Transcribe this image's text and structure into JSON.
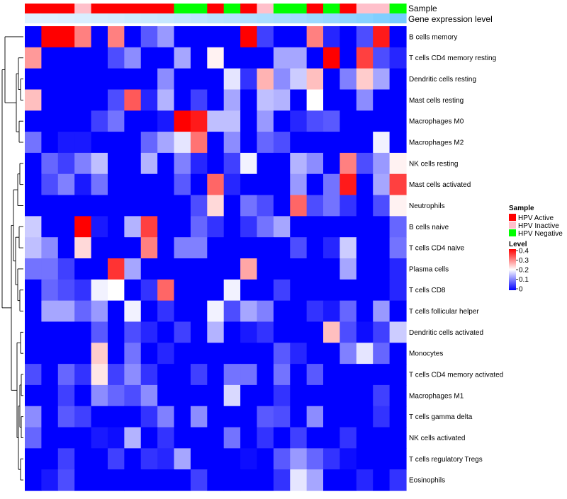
{
  "chart_data": {
    "type": "heatmap",
    "title": "",
    "annotation_tracks": [
      {
        "name": "Sample",
        "label": "Sample"
      },
      {
        "name": "Gene expression level",
        "label": "Gene expression level"
      }
    ],
    "rows": [
      "B cells memory",
      "T cells CD4 memory resting",
      "Dendritic cells resting",
      "Mast cells resting",
      "Macrophages M0",
      "Macrophages M2",
      "NK cells resting",
      "Mast cells activated",
      "Neutrophils",
      "B cells naive",
      "T cells CD4 naive",
      "Plasma cells",
      "T cells CD8",
      "T cells follicular helper",
      "Dendritic cells activated",
      "Monocytes",
      "T cells CD4 memory activated",
      "Macrophages M1",
      "T cells gamma delta",
      "NK cells activated",
      "T cells regulatory  Tregs",
      "Eosinophils"
    ],
    "sample_groups": [
      "A",
      "A",
      "A",
      "I",
      "A",
      "A",
      "A",
      "A",
      "A",
      "N",
      "N",
      "A",
      "N",
      "A",
      "I",
      "N",
      "N",
      "A",
      "N",
      "A",
      "I",
      "I",
      "N"
    ],
    "expression_level": [
      0.04,
      0.05,
      0.07,
      0.09,
      0.11,
      0.13,
      0.16,
      0.18,
      0.21,
      0.24,
      0.27,
      0.3,
      0.33,
      0.36,
      0.39,
      0.42,
      0.45,
      0.49,
      0.53,
      0.58,
      0.63,
      0.68,
      0.74
    ],
    "values": [
      [
        0,
        0.4,
        0.4,
        0.3,
        0,
        0.3,
        0,
        0.07,
        0.12,
        0,
        0,
        0,
        0,
        0.4,
        0.05,
        0,
        0,
        0.3,
        0.03,
        0,
        0.06,
        0.38,
        0
      ],
      [
        0.28,
        0,
        0,
        0,
        0,
        0.06,
        0.11,
        0,
        0,
        0.13,
        0,
        0.21,
        0,
        0,
        0,
        0.13,
        0.13,
        0,
        0.4,
        0,
        0.35,
        0.06,
        0.03
      ],
      [
        0,
        0,
        0,
        0,
        0,
        0,
        0,
        0,
        0.11,
        0,
        0,
        0,
        0.18,
        0.04,
        0.26,
        0.11,
        0.16,
        0.25,
        0,
        0.1,
        0.24,
        0.13,
        0
      ],
      [
        0.25,
        0,
        0,
        0,
        0,
        0.06,
        0.33,
        0.03,
        0.14,
        0,
        0.05,
        0,
        0.13,
        0,
        0.15,
        0.14,
        0,
        0.2,
        0,
        0,
        0.11,
        0,
        0
      ],
      [
        0,
        0,
        0,
        0,
        0.05,
        0.09,
        0,
        0,
        0.02,
        0.4,
        0.38,
        0.15,
        0.15,
        0,
        0.12,
        0,
        0.03,
        0.06,
        0.07,
        0,
        0,
        0,
        0
      ],
      [
        0.09,
        0,
        0.02,
        0.02,
        0,
        0,
        0,
        0.08,
        0.13,
        0.18,
        0.31,
        0,
        0.11,
        0,
        0.08,
        0.06,
        0,
        0,
        0,
        0,
        0,
        0.19,
        0
      ],
      [
        0,
        0.08,
        0.05,
        0.1,
        0.15,
        0,
        0,
        0.14,
        0,
        0.1,
        0.03,
        0,
        0.05,
        0.19,
        0,
        0,
        0.14,
        0.11,
        0,
        0.3,
        0.06,
        0.12,
        0.21
      ],
      [
        0,
        0.06,
        0.1,
        0.02,
        0.09,
        0,
        0,
        0,
        0,
        0.07,
        0,
        0.32,
        0.03,
        0,
        0,
        0,
        0.12,
        0,
        0.09,
        0.38,
        0,
        0.13,
        0.35
      ],
      [
        0,
        0,
        0,
        0,
        0,
        0,
        0,
        0,
        0,
        0,
        0.06,
        0.23,
        0,
        0.09,
        0.06,
        0,
        0.32,
        0.06,
        0.09,
        0.04,
        0,
        0.06,
        0.21
      ],
      [
        0.16,
        0,
        0,
        0.4,
        0.02,
        0,
        0.14,
        0.35,
        0,
        0,
        0.08,
        0.04,
        0,
        0.04,
        0.09,
        0.13,
        0,
        0,
        0,
        0,
        0,
        0,
        0.08
      ],
      [
        0.15,
        0.11,
        0,
        0.23,
        0,
        0,
        0,
        0.3,
        0,
        0.1,
        0.1,
        0,
        0,
        0,
        0,
        0,
        0.06,
        0,
        0.03,
        0.16,
        0,
        0,
        0.09
      ],
      [
        0.09,
        0.09,
        0.05,
        0,
        0,
        0.36,
        0.13,
        0,
        0,
        0,
        0,
        0,
        0,
        0.27,
        0,
        0,
        0,
        0,
        0,
        0.13,
        0,
        0,
        0.03
      ],
      [
        0,
        0.08,
        0.06,
        0.04,
        0.19,
        0.2,
        0,
        0.04,
        0.32,
        0,
        0,
        0,
        0.19,
        0,
        0,
        0.05,
        0,
        0,
        0,
        0,
        0,
        0,
        0.03
      ],
      [
        0,
        0.13,
        0.13,
        0.08,
        0.12,
        0,
        0.19,
        0,
        0.04,
        0,
        0,
        0.19,
        0.06,
        0.13,
        0.1,
        0,
        0,
        0.04,
        0.02,
        0.08,
        0,
        0.12,
        0
      ],
      [
        0,
        0,
        0,
        0,
        0.07,
        0,
        0.06,
        0.03,
        0,
        0.05,
        0,
        0.14,
        0,
        0.02,
        0.04,
        0,
        0,
        0,
        0.25,
        0.06,
        0.01,
        0.05,
        0.16
      ],
      [
        0,
        0,
        0,
        0,
        0.24,
        0,
        0.09,
        0,
        0.03,
        0,
        0,
        0,
        0,
        0,
        0,
        0.07,
        0.03,
        0,
        0,
        0.1,
        0.18,
        0.08,
        0
      ],
      [
        0.06,
        0,
        0.08,
        0.04,
        0.22,
        0.05,
        0.11,
        0.04,
        0,
        0,
        0.05,
        0,
        0.09,
        0.09,
        0,
        0.09,
        0,
        0.07,
        0,
        0,
        0,
        0,
        0
      ],
      [
        0,
        0,
        0.05,
        0,
        0.11,
        0.08,
        0.06,
        0.11,
        0,
        0,
        0,
        0,
        0.17,
        0,
        0,
        0.04,
        0,
        0,
        0,
        0,
        0,
        0.05,
        0
      ],
      [
        0.11,
        0,
        0.07,
        0.05,
        0,
        0,
        0,
        0.04,
        0.1,
        0,
        0.11,
        0,
        0,
        0,
        0.07,
        0.06,
        0,
        0.11,
        0,
        0,
        0,
        0.04,
        0
      ],
      [
        0.08,
        0,
        0,
        0,
        0.02,
        0.01,
        0.14,
        0,
        0.04,
        0,
        0,
        0,
        0.09,
        0,
        0.04,
        0,
        0.05,
        0,
        0,
        0.04,
        0,
        0,
        0
      ],
      [
        0,
        0,
        0.05,
        0,
        0,
        0.05,
        0,
        0.04,
        0.03,
        0.13,
        0,
        0,
        0,
        0.01,
        0,
        0.07,
        0.12,
        0.08,
        0.04,
        0.01,
        0,
        0,
        0
      ],
      [
        0,
        0.02,
        0.06,
        0,
        0,
        0,
        0,
        0,
        0,
        0,
        0.05,
        0,
        0,
        0,
        0,
        0.04,
        0.18,
        0.13,
        0,
        0,
        0.03,
        0,
        0.04
      ]
    ],
    "legend": {
      "sample": {
        "title": "Sample",
        "items": [
          {
            "label": "HPV Active",
            "color": "#ff0000"
          },
          {
            "label": "HPV Inactive",
            "color": "#ffc0cb"
          },
          {
            "label": "HPV Negative",
            "color": "#00ff00"
          }
        ]
      },
      "level": {
        "title": "Level",
        "ticks": [
          "0.4",
          "0.3",
          "0.2",
          "0.1",
          "0"
        ],
        "range": [
          0,
          0.4
        ]
      }
    },
    "color_scale": {
      "low": "#0000ff",
      "mid": "#ffffff",
      "high": "#ff0000",
      "domain": [
        0,
        0.2,
        0.4
      ]
    },
    "dendrogram": "row",
    "legend_position": "right"
  }
}
